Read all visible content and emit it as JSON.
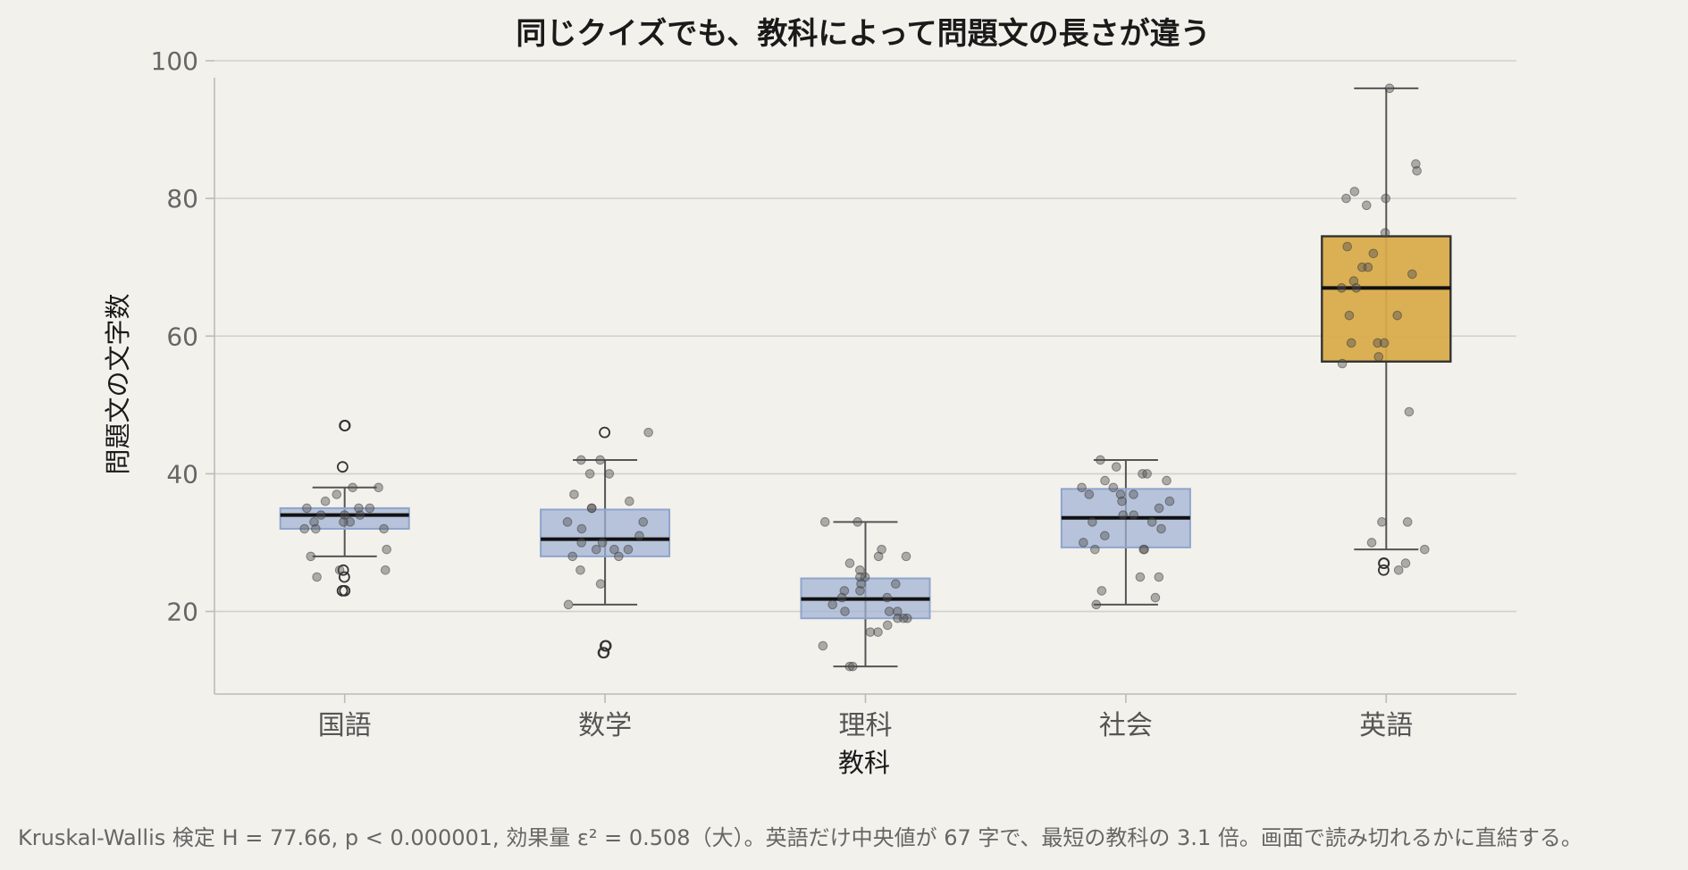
{
  "chart_data": {
    "type": "box",
    "title": "同じクイズでも、教科によって問題文の長さが違う",
    "xlabel": "教科",
    "ylabel": "問題文の文字数",
    "ylim": [
      8,
      100
    ],
    "yticks": [
      20,
      40,
      60,
      80,
      100
    ],
    "grid": "horizontal",
    "colors": {
      "default_box": "#9fb2d3",
      "highlight_box": "#d9aa47",
      "point": "#555555",
      "median": "#111111"
    },
    "categories": [
      "国語",
      "数学",
      "理科",
      "社会",
      "英語"
    ],
    "boxes": [
      {
        "name": "国語",
        "q1": 32,
        "median": 34,
        "q3": 35,
        "whisker_low": 28,
        "whisker_high": 38,
        "outliers": [
          47,
          47,
          41,
          26,
          25,
          23,
          23
        ],
        "points": [
          38,
          38,
          37,
          36,
          35,
          35,
          35,
          34,
          34,
          34,
          33,
          33,
          33,
          32,
          32,
          32,
          29,
          28,
          26,
          26,
          25
        ]
      },
      {
        "name": "数学",
        "q1": 28,
        "median": 30.5,
        "q3": 34.8,
        "whisker_low": 21,
        "whisker_high": 42,
        "outliers": [
          46,
          15,
          15,
          14,
          14
        ],
        "points": [
          46,
          42,
          42,
          40,
          40,
          37,
          36,
          35,
          35,
          33,
          33,
          32,
          31,
          30,
          30,
          29,
          29,
          29,
          28,
          28,
          26,
          24,
          21
        ]
      },
      {
        "name": "理科",
        "q1": 19,
        "median": 21.8,
        "q3": 24.8,
        "whisker_low": 12,
        "whisker_high": 33,
        "outliers": [],
        "points": [
          33,
          33,
          29,
          28,
          28,
          27,
          26,
          25,
          25,
          24,
          24,
          23,
          23,
          22,
          22,
          21,
          20,
          20,
          20,
          19,
          19,
          19,
          18,
          17,
          17,
          15,
          12,
          12
        ]
      },
      {
        "name": "社会",
        "q1": 29.3,
        "median": 33.6,
        "q3": 37.8,
        "whisker_low": 21,
        "whisker_high": 42,
        "outliers": [],
        "points": [
          42,
          41,
          40,
          40,
          39,
          39,
          38,
          38,
          37,
          37,
          37,
          36,
          36,
          35,
          34,
          34,
          33,
          33,
          32,
          31,
          30,
          29,
          29,
          29,
          25,
          25,
          23,
          22,
          21
        ]
      },
      {
        "name": "英語",
        "q1": 56.3,
        "median": 67,
        "q3": 74.5,
        "whisker_low": 29,
        "whisker_high": 96,
        "outliers": [
          27,
          27,
          26
        ],
        "points": [
          96,
          85,
          84,
          81,
          80,
          80,
          79,
          75,
          73,
          72,
          70,
          70,
          69,
          68,
          67,
          67,
          63,
          63,
          59,
          59,
          59,
          57,
          56,
          49,
          33,
          33,
          30,
          29,
          27,
          26
        ]
      }
    ],
    "highlight": "英語",
    "footnote": "Kruskal-Wallis 検定 H = 77.66, p < 0.000001, 効果量 ε² = 0.508（大）。英語だけ中央値が 67 字で、最短の教科の 3.1 倍。画面で読み切れるかに直結する。"
  }
}
